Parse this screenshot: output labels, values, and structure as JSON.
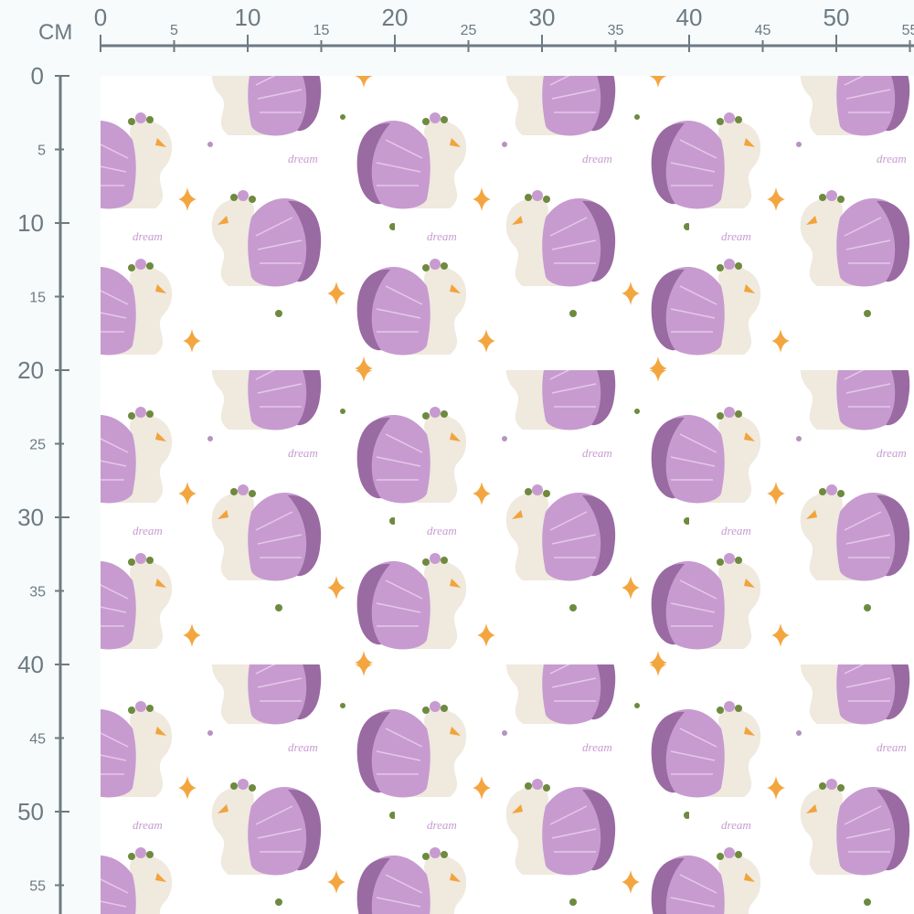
{
  "ruler": {
    "unit": "CM",
    "top_labels": [
      "0",
      "5",
      "10",
      "15",
      "20",
      "25",
      "30",
      "35",
      "40",
      "45",
      "50",
      "55"
    ],
    "left_labels": [
      "0",
      "5",
      "10",
      "15",
      "20",
      "25",
      "30",
      "35",
      "40",
      "45",
      "50",
      "55"
    ],
    "color": "#6d7a82"
  },
  "fabric": {
    "motif_text": "dream",
    "colors": {
      "background": "#ffffff",
      "wing_light": "#c79bd0",
      "wing_dark": "#9a6aa3",
      "swan_body": "#efe9de",
      "beak": "#f2a33a",
      "star": "#f3a640",
      "leaf": "#6d8a3e"
    }
  }
}
